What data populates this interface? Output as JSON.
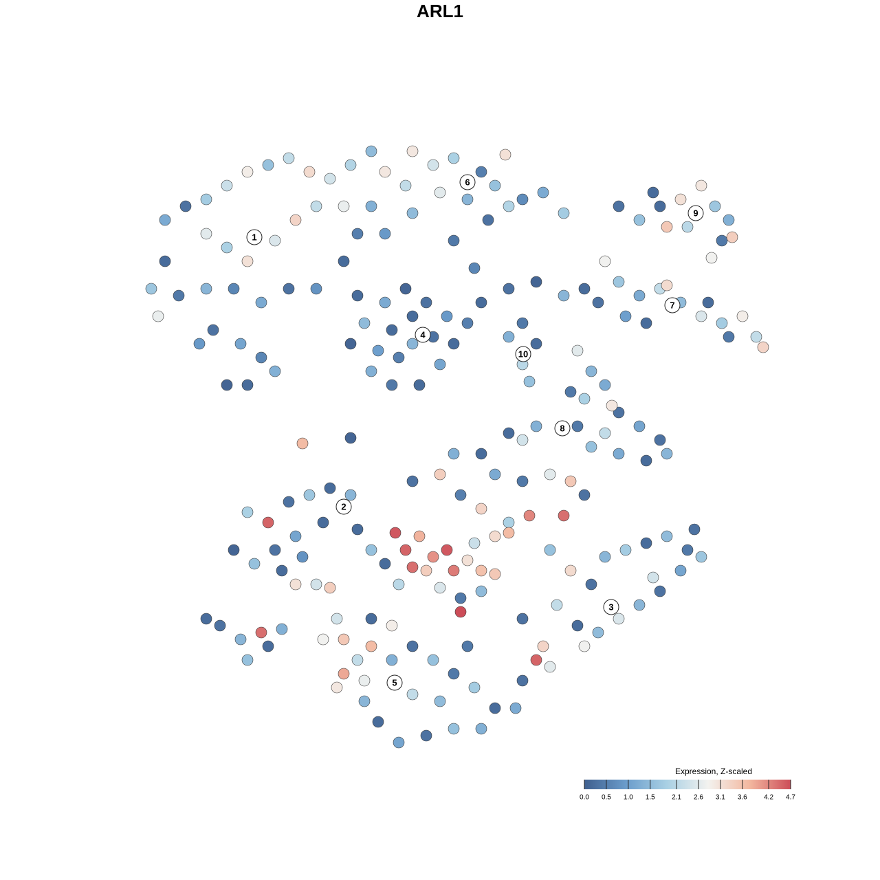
{
  "chart_data": {
    "type": "scatter",
    "title": "ARL1",
    "colorbar_title": "Expression, Z-scaled",
    "clim": [
      0,
      4.7
    ],
    "colorscale": [
      "#3f5f8e",
      "#6a9ccb",
      "#a9d0e4",
      "#f3f2ef",
      "#f3b8a0",
      "#cc4d58"
    ],
    "cticks": [
      {
        "value": 0,
        "label": "0.0"
      },
      0.5,
      {
        "value": 1,
        "label": "1.0"
      },
      1.5,
      2.1,
      2.6,
      3.1,
      3.6,
      4.2,
      4.7
    ],
    "xlim": [
      200,
      1130
    ],
    "ylim": [
      1095,
      180
    ],
    "clusters": [
      {
        "label": "1",
        "x": 370,
        "y": 345
      },
      {
        "label": "2",
        "x": 500,
        "y": 737
      },
      {
        "label": "3",
        "x": 889,
        "y": 883
      },
      {
        "label": "4",
        "x": 615,
        "y": 487
      },
      {
        "label": "5",
        "x": 574,
        "y": 993
      },
      {
        "label": "6",
        "x": 680,
        "y": 265
      },
      {
        "label": "7",
        "x": 978,
        "y": 444
      },
      {
        "label": "8",
        "x": 818,
        "y": 623
      },
      {
        "label": "9",
        "x": 1012,
        "y": 310
      },
      {
        "label": "10",
        "x": 761,
        "y": 515
      }
    ],
    "points": [
      {
        "x": 240,
        "y": 320,
        "value": 1.2
      },
      {
        "x": 270,
        "y": 300,
        "value": 0.3
      },
      {
        "x": 300,
        "y": 290,
        "value": 1.8
      },
      {
        "x": 330,
        "y": 270,
        "value": 2.3
      },
      {
        "x": 360,
        "y": 250,
        "value": 2.9
      },
      {
        "x": 390,
        "y": 240,
        "value": 1.6
      },
      {
        "x": 420,
        "y": 230,
        "value": 2.2
      },
      {
        "x": 450,
        "y": 250,
        "value": 3.2
      },
      {
        "x": 480,
        "y": 260,
        "value": 2.4
      },
      {
        "x": 510,
        "y": 240,
        "value": 2.0
      },
      {
        "x": 540,
        "y": 220,
        "value": 1.5
      },
      {
        "x": 560,
        "y": 250,
        "value": 3.0
      },
      {
        "x": 300,
        "y": 340,
        "value": 2.6
      },
      {
        "x": 330,
        "y": 360,
        "value": 1.9
      },
      {
        "x": 360,
        "y": 380,
        "value": 3.1
      },
      {
        "x": 400,
        "y": 350,
        "value": 2.5
      },
      {
        "x": 430,
        "y": 320,
        "value": 3.3
      },
      {
        "x": 460,
        "y": 300,
        "value": 2.2
      },
      {
        "x": 500,
        "y": 300,
        "value": 2.7
      },
      {
        "x": 540,
        "y": 300,
        "value": 1.3
      },
      {
        "x": 240,
        "y": 380,
        "value": 0.2
      },
      {
        "x": 220,
        "y": 420,
        "value": 1.7
      },
      {
        "x": 260,
        "y": 430,
        "value": 0.4
      },
      {
        "x": 300,
        "y": 420,
        "value": 1.4
      },
      {
        "x": 340,
        "y": 420,
        "value": 0.6
      },
      {
        "x": 380,
        "y": 440,
        "value": 1.2
      },
      {
        "x": 420,
        "y": 420,
        "value": 0.3
      },
      {
        "x": 460,
        "y": 420,
        "value": 0.8
      },
      {
        "x": 500,
        "y": 380,
        "value": 0.2
      },
      {
        "x": 520,
        "y": 340,
        "value": 0.5
      },
      {
        "x": 310,
        "y": 480,
        "value": 0.3
      },
      {
        "x": 350,
        "y": 500,
        "value": 1.1
      },
      {
        "x": 380,
        "y": 520,
        "value": 0.6
      },
      {
        "x": 330,
        "y": 560,
        "value": 0.1
      },
      {
        "x": 360,
        "y": 560,
        "value": 0.2
      },
      {
        "x": 400,
        "y": 540,
        "value": 1.3
      },
      {
        "x": 290,
        "y": 500,
        "value": 0.9
      },
      {
        "x": 230,
        "y": 460,
        "value": 2.7
      },
      {
        "x": 600,
        "y": 220,
        "value": 3.0
      },
      {
        "x": 630,
        "y": 240,
        "value": 2.4
      },
      {
        "x": 660,
        "y": 230,
        "value": 1.9
      },
      {
        "x": 700,
        "y": 250,
        "value": 0.5
      },
      {
        "x": 720,
        "y": 270,
        "value": 1.6
      },
      {
        "x": 740,
        "y": 300,
        "value": 2.0
      },
      {
        "x": 760,
        "y": 290,
        "value": 0.7
      },
      {
        "x": 790,
        "y": 280,
        "value": 1.2
      },
      {
        "x": 820,
        "y": 310,
        "value": 1.8
      },
      {
        "x": 590,
        "y": 270,
        "value": 2.2
      },
      {
        "x": 640,
        "y": 280,
        "value": 2.6
      },
      {
        "x": 680,
        "y": 290,
        "value": 1.4
      },
      {
        "x": 710,
        "y": 320,
        "value": 0.3
      },
      {
        "x": 600,
        "y": 310,
        "value": 1.5
      },
      {
        "x": 560,
        "y": 340,
        "value": 0.9
      },
      {
        "x": 735,
        "y": 225,
        "value": 3.1
      },
      {
        "x": 660,
        "y": 350,
        "value": 0.4
      },
      {
        "x": 690,
        "y": 390,
        "value": 0.6
      },
      {
        "x": 520,
        "y": 430,
        "value": 0.2
      },
      {
        "x": 560,
        "y": 440,
        "value": 1.2
      },
      {
        "x": 590,
        "y": 420,
        "value": 0.1
      },
      {
        "x": 620,
        "y": 440,
        "value": 0.3
      },
      {
        "x": 650,
        "y": 460,
        "value": 0.9
      },
      {
        "x": 660,
        "y": 500,
        "value": 0.2
      },
      {
        "x": 640,
        "y": 530,
        "value": 1.1
      },
      {
        "x": 610,
        "y": 560,
        "value": 0.2
      },
      {
        "x": 570,
        "y": 560,
        "value": 0.4
      },
      {
        "x": 540,
        "y": 540,
        "value": 1.3
      },
      {
        "x": 510,
        "y": 500,
        "value": 0.1
      },
      {
        "x": 530,
        "y": 470,
        "value": 1.5
      },
      {
        "x": 570,
        "y": 480,
        "value": 0.2
      },
      {
        "x": 600,
        "y": 500,
        "value": 1.4
      },
      {
        "x": 630,
        "y": 490,
        "value": 0.3
      },
      {
        "x": 580,
        "y": 520,
        "value": 0.5
      },
      {
        "x": 550,
        "y": 510,
        "value": 1.0
      },
      {
        "x": 600,
        "y": 460,
        "value": 0.2
      },
      {
        "x": 740,
        "y": 490,
        "value": 1.3
      },
      {
        "x": 760,
        "y": 530,
        "value": 2.1
      },
      {
        "x": 780,
        "y": 500,
        "value": 0.2
      },
      {
        "x": 760,
        "y": 470,
        "value": 0.4
      },
      {
        "x": 770,
        "y": 555,
        "value": 1.6
      },
      {
        "x": 700,
        "y": 440,
        "value": 0.2
      },
      {
        "x": 740,
        "y": 420,
        "value": 0.3
      },
      {
        "x": 780,
        "y": 410,
        "value": 0.1
      },
      {
        "x": 820,
        "y": 430,
        "value": 1.4
      },
      {
        "x": 850,
        "y": 420,
        "value": 0.2
      },
      {
        "x": 680,
        "y": 470,
        "value": 0.5
      },
      {
        "x": 880,
        "y": 380,
        "value": 2.8
      },
      {
        "x": 900,
        "y": 410,
        "value": 1.7
      },
      {
        "x": 930,
        "y": 430,
        "value": 1.2
      },
      {
        "x": 960,
        "y": 420,
        "value": 2.2
      },
      {
        "x": 990,
        "y": 440,
        "value": 1.5
      },
      {
        "x": 1020,
        "y": 460,
        "value": 2.5
      },
      {
        "x": 1050,
        "y": 470,
        "value": 1.8
      },
      {
        "x": 1080,
        "y": 460,
        "value": 2.9
      },
      {
        "x": 1100,
        "y": 490,
        "value": 2.2
      },
      {
        "x": 1110,
        "y": 505,
        "value": 3.3
      },
      {
        "x": 1060,
        "y": 490,
        "value": 0.4
      },
      {
        "x": 940,
        "y": 470,
        "value": 0.2
      },
      {
        "x": 910,
        "y": 460,
        "value": 1.0
      },
      {
        "x": 870,
        "y": 440,
        "value": 0.3
      },
      {
        "x": 1030,
        "y": 440,
        "value": 0.2
      },
      {
        "x": 970,
        "y": 415,
        "value": 3.2
      },
      {
        "x": 900,
        "y": 300,
        "value": 0.3
      },
      {
        "x": 930,
        "y": 320,
        "value": 1.6
      },
      {
        "x": 960,
        "y": 300,
        "value": 0.2
      },
      {
        "x": 990,
        "y": 290,
        "value": 3.1
      },
      {
        "x": 1020,
        "y": 270,
        "value": 3.0
      },
      {
        "x": 1040,
        "y": 300,
        "value": 1.7
      },
      {
        "x": 1060,
        "y": 320,
        "value": 1.3
      },
      {
        "x": 1050,
        "y": 350,
        "value": 0.4
      },
      {
        "x": 1065,
        "y": 345,
        "value": 3.4
      },
      {
        "x": 1000,
        "y": 330,
        "value": 2.1
      },
      {
        "x": 970,
        "y": 330,
        "value": 3.5
      },
      {
        "x": 950,
        "y": 280,
        "value": 0.2
      },
      {
        "x": 1035,
        "y": 375,
        "value": 2.8
      },
      {
        "x": 840,
        "y": 510,
        "value": 2.6
      },
      {
        "x": 860,
        "y": 540,
        "value": 1.4
      },
      {
        "x": 830,
        "y": 570,
        "value": 0.4
      },
      {
        "x": 850,
        "y": 580,
        "value": 1.9
      },
      {
        "x": 880,
        "y": 560,
        "value": 1.2
      },
      {
        "x": 900,
        "y": 600,
        "value": 0.3
      },
      {
        "x": 930,
        "y": 620,
        "value": 1.1
      },
      {
        "x": 960,
        "y": 640,
        "value": 0.3
      },
      {
        "x": 970,
        "y": 660,
        "value": 1.4
      },
      {
        "x": 940,
        "y": 670,
        "value": 0.2
      },
      {
        "x": 900,
        "y": 660,
        "value": 1.2
      },
      {
        "x": 880,
        "y": 630,
        "value": 2.2
      },
      {
        "x": 860,
        "y": 650,
        "value": 1.6
      },
      {
        "x": 840,
        "y": 620,
        "value": 0.4
      },
      {
        "x": 780,
        "y": 620,
        "value": 1.3
      },
      {
        "x": 760,
        "y": 640,
        "value": 2.4
      },
      {
        "x": 740,
        "y": 630,
        "value": 0.2
      },
      {
        "x": 890,
        "y": 590,
        "value": 3.0
      },
      {
        "x": 700,
        "y": 660,
        "value": 0.2
      },
      {
        "x": 720,
        "y": 690,
        "value": 1.2
      },
      {
        "x": 760,
        "y": 700,
        "value": 0.4
      },
      {
        "x": 800,
        "y": 690,
        "value": 2.6
      },
      {
        "x": 830,
        "y": 700,
        "value": 3.5
      },
      {
        "x": 850,
        "y": 720,
        "value": 0.3
      },
      {
        "x": 820,
        "y": 750,
        "value": 4.4
      },
      {
        "x": 770,
        "y": 750,
        "value": 4.2
      },
      {
        "x": 740,
        "y": 760,
        "value": 1.9
      },
      {
        "x": 700,
        "y": 740,
        "value": 3.3
      },
      {
        "x": 670,
        "y": 720,
        "value": 0.5
      },
      {
        "x": 640,
        "y": 690,
        "value": 3.4
      },
      {
        "x": 600,
        "y": 700,
        "value": 0.3
      },
      {
        "x": 660,
        "y": 660,
        "value": 1.3
      },
      {
        "x": 575,
        "y": 775,
        "value": 4.6
      },
      {
        "x": 590,
        "y": 800,
        "value": 4.5
      },
      {
        "x": 610,
        "y": 780,
        "value": 3.8
      },
      {
        "x": 630,
        "y": 810,
        "value": 4.1
      },
      {
        "x": 650,
        "y": 800,
        "value": 4.6
      },
      {
        "x": 660,
        "y": 830,
        "value": 4.3
      },
      {
        "x": 620,
        "y": 830,
        "value": 3.4
      },
      {
        "x": 600,
        "y": 825,
        "value": 4.4
      },
      {
        "x": 680,
        "y": 815,
        "value": 3.1
      },
      {
        "x": 700,
        "y": 830,
        "value": 3.6
      },
      {
        "x": 720,
        "y": 835,
        "value": 3.5
      },
      {
        "x": 740,
        "y": 775,
        "value": 3.7
      },
      {
        "x": 720,
        "y": 780,
        "value": 3.2
      },
      {
        "x": 690,
        "y": 790,
        "value": 2.3
      },
      {
        "x": 670,
        "y": 870,
        "value": 0.4
      },
      {
        "x": 670,
        "y": 890,
        "value": 4.7
      },
      {
        "x": 640,
        "y": 855,
        "value": 2.5
      },
      {
        "x": 560,
        "y": 820,
        "value": 0.2
      },
      {
        "x": 540,
        "y": 800,
        "value": 1.6
      },
      {
        "x": 580,
        "y": 850,
        "value": 2.1
      },
      {
        "x": 700,
        "y": 860,
        "value": 1.5
      },
      {
        "x": 360,
        "y": 745,
        "value": 1.9
      },
      {
        "x": 390,
        "y": 760,
        "value": 4.5
      },
      {
        "x": 420,
        "y": 730,
        "value": 0.3
      },
      {
        "x": 450,
        "y": 720,
        "value": 1.7
      },
      {
        "x": 480,
        "y": 710,
        "value": 0.2
      },
      {
        "x": 510,
        "y": 720,
        "value": 1.4
      },
      {
        "x": 470,
        "y": 760,
        "value": 0.2
      },
      {
        "x": 430,
        "y": 780,
        "value": 1.1
      },
      {
        "x": 400,
        "y": 800,
        "value": 0.3
      },
      {
        "x": 370,
        "y": 820,
        "value": 1.6
      },
      {
        "x": 340,
        "y": 800,
        "value": 0.1
      },
      {
        "x": 410,
        "y": 830,
        "value": 0.2
      },
      {
        "x": 440,
        "y": 810,
        "value": 0.8
      },
      {
        "x": 460,
        "y": 850,
        "value": 2.4
      },
      {
        "x": 480,
        "y": 855,
        "value": 3.4
      },
      {
        "x": 430,
        "y": 850,
        "value": 3.1
      },
      {
        "x": 520,
        "y": 770,
        "value": 0.2
      },
      {
        "x": 300,
        "y": 900,
        "value": 0.2
      },
      {
        "x": 320,
        "y": 910,
        "value": 0.3
      },
      {
        "x": 350,
        "y": 930,
        "value": 1.4
      },
      {
        "x": 380,
        "y": 920,
        "value": 4.4
      },
      {
        "x": 360,
        "y": 960,
        "value": 1.6
      },
      {
        "x": 390,
        "y": 940,
        "value": 0.2
      },
      {
        "x": 410,
        "y": 915,
        "value": 1.3
      },
      {
        "x": 440,
        "y": 645,
        "value": 3.7
      },
      {
        "x": 510,
        "y": 637,
        "value": 0.1
      },
      {
        "x": 800,
        "y": 800,
        "value": 1.6
      },
      {
        "x": 830,
        "y": 830,
        "value": 3.2
      },
      {
        "x": 860,
        "y": 850,
        "value": 0.3
      },
      {
        "x": 880,
        "y": 810,
        "value": 1.4
      },
      {
        "x": 910,
        "y": 800,
        "value": 1.8
      },
      {
        "x": 940,
        "y": 790,
        "value": 0.2
      },
      {
        "x": 970,
        "y": 780,
        "value": 1.5
      },
      {
        "x": 1000,
        "y": 800,
        "value": 0.4
      },
      {
        "x": 1020,
        "y": 810,
        "value": 1.7
      },
      {
        "x": 990,
        "y": 830,
        "value": 1.1
      },
      {
        "x": 960,
        "y": 860,
        "value": 0.3
      },
      {
        "x": 930,
        "y": 880,
        "value": 1.4
      },
      {
        "x": 900,
        "y": 900,
        "value": 2.5
      },
      {
        "x": 870,
        "y": 920,
        "value": 1.5
      },
      {
        "x": 840,
        "y": 910,
        "value": 0.2
      },
      {
        "x": 810,
        "y": 880,
        "value": 2.2
      },
      {
        "x": 790,
        "y": 940,
        "value": 3.3
      },
      {
        "x": 780,
        "y": 960,
        "value": 4.5
      },
      {
        "x": 800,
        "y": 970,
        "value": 2.6
      },
      {
        "x": 760,
        "y": 900,
        "value": 0.3
      },
      {
        "x": 850,
        "y": 940,
        "value": 2.8
      },
      {
        "x": 950,
        "y": 840,
        "value": 2.4
      },
      {
        "x": 1010,
        "y": 770,
        "value": 0.3
      },
      {
        "x": 490,
        "y": 900,
        "value": 2.4
      },
      {
        "x": 500,
        "y": 930,
        "value": 3.5
      },
      {
        "x": 520,
        "y": 960,
        "value": 2.2
      },
      {
        "x": 530,
        "y": 990,
        "value": 2.7
      },
      {
        "x": 500,
        "y": 980,
        "value": 3.9
      },
      {
        "x": 490,
        "y": 1000,
        "value": 3.0
      },
      {
        "x": 540,
        "y": 940,
        "value": 3.7
      },
      {
        "x": 570,
        "y": 960,
        "value": 1.3
      },
      {
        "x": 600,
        "y": 940,
        "value": 0.3
      },
      {
        "x": 630,
        "y": 960,
        "value": 1.6
      },
      {
        "x": 660,
        "y": 980,
        "value": 0.4
      },
      {
        "x": 690,
        "y": 1000,
        "value": 1.8
      },
      {
        "x": 720,
        "y": 1030,
        "value": 0.2
      },
      {
        "x": 700,
        "y": 1060,
        "value": 1.3
      },
      {
        "x": 660,
        "y": 1060,
        "value": 1.6
      },
      {
        "x": 620,
        "y": 1070,
        "value": 0.3
      },
      {
        "x": 580,
        "y": 1080,
        "value": 1.1
      },
      {
        "x": 550,
        "y": 1050,
        "value": 0.2
      },
      {
        "x": 530,
        "y": 1020,
        "value": 1.4
      },
      {
        "x": 600,
        "y": 1010,
        "value": 2.2
      },
      {
        "x": 640,
        "y": 1020,
        "value": 1.5
      },
      {
        "x": 570,
        "y": 910,
        "value": 2.9
      },
      {
        "x": 540,
        "y": 900,
        "value": 0.2
      },
      {
        "x": 680,
        "y": 940,
        "value": 0.4
      },
      {
        "x": 750,
        "y": 1030,
        "value": 1.2
      },
      {
        "x": 760,
        "y": 990,
        "value": 0.3
      },
      {
        "x": 470,
        "y": 930,
        "value": 2.8
      }
    ]
  }
}
